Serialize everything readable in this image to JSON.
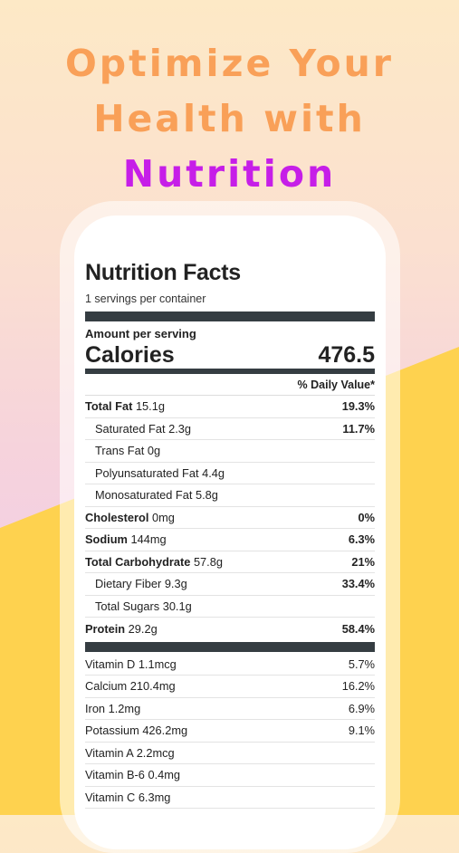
{
  "headline": {
    "line1": "Optimize Your",
    "line2": "Health with",
    "line3": "Nutrition"
  },
  "label": {
    "title": "Nutrition Facts",
    "servings": "1 servings per container",
    "amount_per_serving": "Amount per serving",
    "calories_label": "Calories",
    "calories_value": "476.5",
    "daily_value_header": "% Daily Value*",
    "nutrients": [
      {
        "name": "Total Fat",
        "amount": "15.1g",
        "pct": "19.3%"
      },
      {
        "name": "Saturated Fat",
        "amount": "2.3g",
        "pct": "11.7%"
      },
      {
        "name": "Trans Fat",
        "amount": "0g",
        "pct": ""
      },
      {
        "name": "Polyunsaturated Fat",
        "amount": "4.4g",
        "pct": ""
      },
      {
        "name": "Monosaturated Fat",
        "amount": "5.8g",
        "pct": ""
      },
      {
        "name": "Cholesterol",
        "amount": "0mg",
        "pct": "0%"
      },
      {
        "name": "Sodium",
        "amount": "144mg",
        "pct": "6.3%"
      },
      {
        "name": "Total Carbohydrate",
        "amount": "57.8g",
        "pct": "21%"
      },
      {
        "name": "Dietary Fiber",
        "amount": "9.3g",
        "pct": "33.4%"
      },
      {
        "name": "Total Sugars",
        "amount": "30.1g",
        "pct": ""
      },
      {
        "name": "Protein",
        "amount": "29.2g",
        "pct": "58.4%"
      }
    ],
    "vitamins": [
      {
        "name": "Vitamin D",
        "amount": "1.1mcg",
        "pct": "5.7%"
      },
      {
        "name": "Calcium",
        "amount": "210.4mg",
        "pct": "16.2%"
      },
      {
        "name": "Iron",
        "amount": "1.2mg",
        "pct": "6.9%"
      },
      {
        "name": "Potassium",
        "amount": "426.2mg",
        "pct": "9.1%"
      },
      {
        "name": "Vitamin A",
        "amount": "2.2mcg",
        "pct": ""
      },
      {
        "name": "Vitamin B-6",
        "amount": "0.4mg",
        "pct": ""
      },
      {
        "name": "Vitamin C",
        "amount": "6.3mg",
        "pct": ""
      }
    ]
  },
  "colors": {
    "headline_orange": "#f9a058",
    "headline_purple": "#c61ee8",
    "accent_yellow": "#fed24f",
    "bar_dark": "#353d42"
  }
}
